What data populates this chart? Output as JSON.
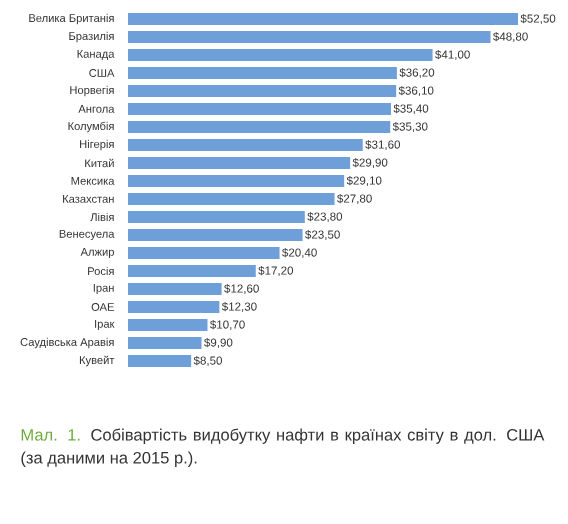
{
  "chart_data": {
    "type": "bar",
    "orientation": "horizontal",
    "categories": [
      "Велика Британія",
      "Бразилія",
      "Канада",
      "США",
      "Норвегія",
      "Ангола",
      "Колумбія",
      "Нігерія",
      "Китай",
      "Мексика",
      "Казахстан",
      "Лівія",
      "Венесуела",
      "Алжир",
      "Росія",
      "Іран",
      "ОАЕ",
      "Ірак",
      "Саудівська Аравія",
      "Кувейт"
    ],
    "values": [
      52.5,
      48.8,
      41.0,
      36.2,
      36.1,
      35.4,
      35.3,
      31.6,
      29.9,
      29.1,
      27.8,
      23.8,
      23.5,
      20.4,
      17.2,
      12.6,
      12.3,
      10.7,
      9.9,
      8.5
    ],
    "value_labels": [
      "$52,50",
      "$48,80",
      "$41,00",
      "$36,20",
      "$36,10",
      "$35,40",
      "$35,30",
      "$31,60",
      "$29,90",
      "$29,10",
      "$27,80",
      "$23,80",
      "$23,50",
      "$20,40",
      "$17,20",
      "$12,60",
      "$12,30",
      "$10,70",
      "$9,90",
      "$8,50"
    ],
    "color": "#6f9fd8",
    "annotations": [
      "Мал. 1.",
      "Собівартість видобутку нафти в країнах світу в дол. США  (за даними на 2015 р.)."
    ]
  }
}
